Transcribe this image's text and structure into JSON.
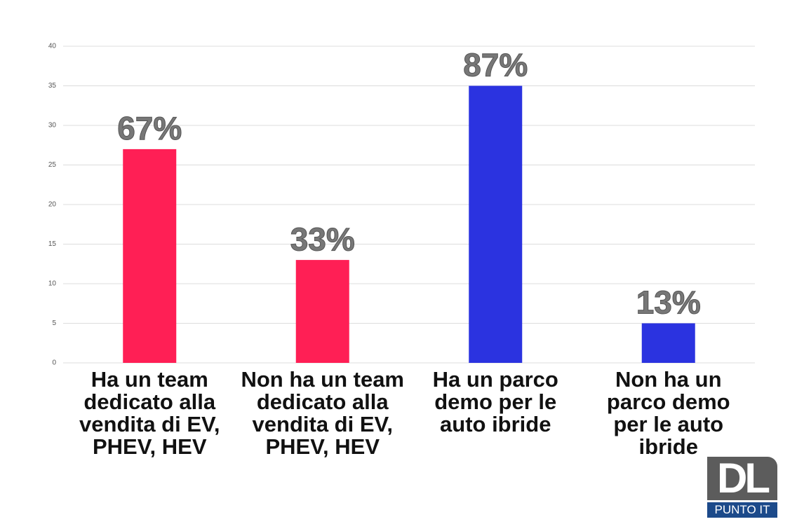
{
  "chart_data": {
    "type": "bar",
    "categories": [
      "Ha un team dedicato alla vendita di EV, PHEV, HEV",
      "Non ha un team dedicato alla vendita di EV, PHEV, HEV",
      "Ha un parco demo per le auto ibride",
      "Non ha un parco demo per le auto ibride"
    ],
    "values": [
      27,
      13,
      35,
      5
    ],
    "colors": [
      "#ff1f55",
      "#ff1f55",
      "#2b33e0",
      "#2b33e0"
    ],
    "annotations": [
      "67%",
      "33%",
      "87%",
      "13%"
    ],
    "ylim": [
      0,
      40
    ],
    "yticks": [
      0,
      5,
      10,
      15,
      20,
      25,
      30,
      35,
      40
    ],
    "grid": true
  },
  "logo": {
    "mark": "DL",
    "text": "PUNTO IT"
  }
}
